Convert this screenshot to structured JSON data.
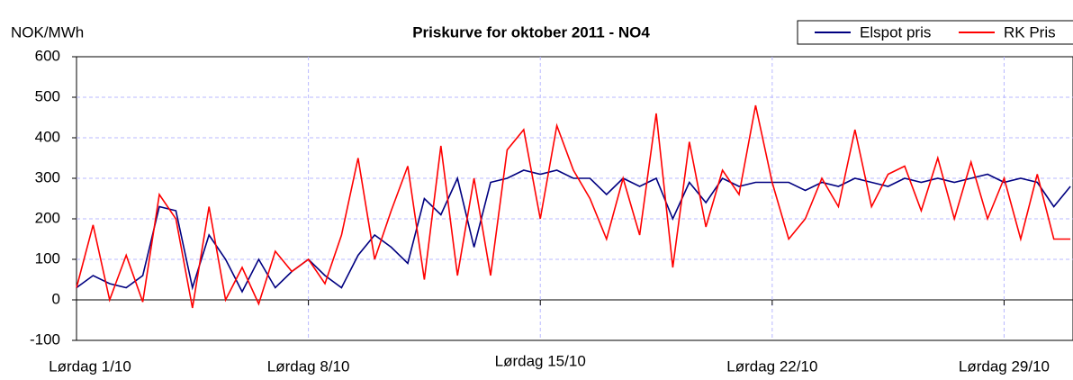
{
  "chart_data": {
    "type": "line",
    "title": "Priskurve for oktober 2011 - NO4",
    "y_label": "NOK/MWh",
    "x": [
      1,
      1.5,
      2,
      2.5,
      3,
      3.5,
      4,
      4.5,
      5,
      5.5,
      6,
      6.5,
      7,
      7.5,
      8,
      8.5,
      9,
      9.5,
      10,
      10.5,
      11,
      11.5,
      12,
      12.5,
      13,
      13.5,
      14,
      14.5,
      15,
      15.5,
      16,
      16.5,
      17,
      17.5,
      18,
      18.5,
      19,
      19.5,
      20,
      20.5,
      21,
      21.5,
      22,
      22.5,
      23,
      23.5,
      24,
      24.5,
      25,
      25.5,
      26,
      26.5,
      27,
      27.5,
      28,
      28.5,
      29,
      29.5,
      30,
      30.5,
      31
    ],
    "series": [
      {
        "name": "Elspot pris",
        "color": "#000080",
        "values": [
          30,
          60,
          40,
          30,
          60,
          230,
          220,
          30,
          160,
          100,
          20,
          100,
          30,
          70,
          100,
          60,
          30,
          110,
          160,
          130,
          90,
          250,
          210,
          300,
          130,
          290,
          300,
          320,
          310,
          320,
          300,
          300,
          260,
          300,
          280,
          300,
          200,
          290,
          240,
          300,
          280,
          290,
          290,
          290,
          270,
          290,
          280,
          300,
          290,
          280,
          300,
          290,
          300,
          290,
          300,
          310,
          290,
          300,
          290,
          230,
          280
        ]
      },
      {
        "name": "RK Pris",
        "color": "#ff0000",
        "values": [
          30,
          185,
          0,
          110,
          -5,
          260,
          200,
          -20,
          230,
          0,
          80,
          -10,
          120,
          70,
          100,
          40,
          160,
          350,
          100,
          220,
          330,
          50,
          380,
          60,
          300,
          60,
          370,
          420,
          200,
          430,
          320,
          250,
          150,
          300,
          160,
          460,
          80,
          390,
          180,
          320,
          260,
          480,
          290,
          150,
          200,
          300,
          230,
          420,
          230,
          310,
          330,
          220,
          350,
          200,
          340,
          200,
          300,
          150,
          310,
          150,
          150
        ]
      }
    ],
    "xlim": [
      1,
      31.08
    ],
    "xticks": [
      {
        "value": 1,
        "label": "Lørdag 1/10"
      },
      {
        "value": 8,
        "label": "Lørdag 8/10"
      },
      {
        "value": 15,
        "label": "Lørdag 15/10"
      },
      {
        "value": 22,
        "label": "Lørdag 22/10"
      },
      {
        "value": 29,
        "label": "Lørdag 29/10"
      }
    ],
    "ylim": [
      -100,
      600
    ],
    "yticks": [
      -100,
      0,
      100,
      200,
      300,
      400,
      500,
      600
    ],
    "grid": true,
    "legend": "top-right"
  }
}
